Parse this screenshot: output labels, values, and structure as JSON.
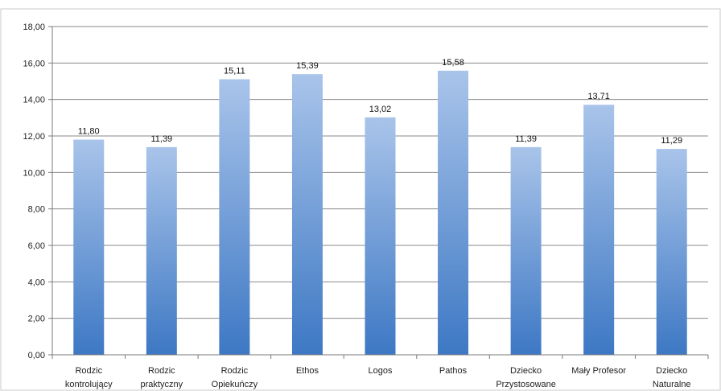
{
  "chart_data": {
    "type": "bar",
    "title": "",
    "xlabel": "",
    "ylabel": "",
    "categories": [
      [
        "Rodzic",
        "kontrolujący"
      ],
      [
        "Rodzic",
        "praktyczny"
      ],
      [
        "Rodzic",
        "Opiekuńczy"
      ],
      [
        "Ethos"
      ],
      [
        "Logos"
      ],
      [
        "Pathos"
      ],
      [
        "Dziecko",
        "Przystosowane"
      ],
      [
        "Mały Profesor"
      ],
      [
        "Dziecko",
        "Naturalne"
      ]
    ],
    "values": [
      11.8,
      11.39,
      15.11,
      15.39,
      13.02,
      15.58,
      11.39,
      13.71,
      11.29
    ],
    "data_labels": [
      "11,80",
      "11,39",
      "15,11",
      "15,39",
      "13,02",
      "15,58",
      "11,39",
      "13,71",
      "11,29"
    ],
    "ylim": [
      0,
      18
    ],
    "ytick_values": [
      0,
      2,
      4,
      6,
      8,
      10,
      12,
      14,
      16,
      18
    ],
    "ytick_labels": [
      "0,00",
      "2,00",
      "4,00",
      "6,00",
      "8,00",
      "10,00",
      "12,00",
      "14,00",
      "16,00",
      "18,00"
    ],
    "grid": true,
    "legend": "none",
    "colors": {
      "bar_top": "#a9c4ea",
      "bar_bottom": "#3d78c4",
      "grid": "#8a8a8a",
      "axis": "#7a7a7a",
      "frame": "#c8c8c8"
    }
  }
}
